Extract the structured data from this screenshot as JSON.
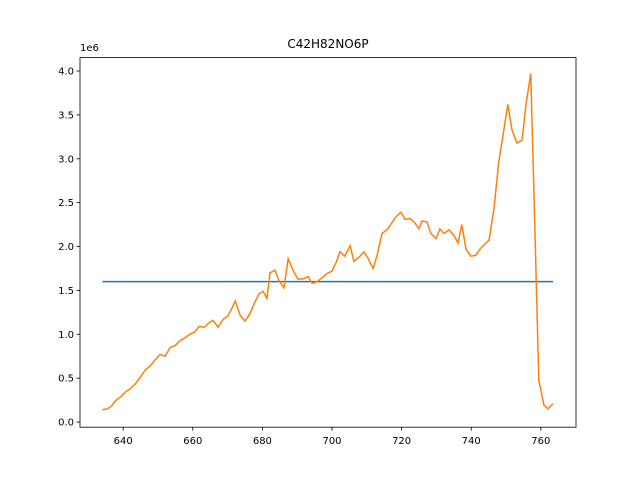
{
  "chart_data": {
    "type": "line",
    "title": "C42H82NO6P",
    "y_offset_label": "1e6",
    "xlim": [
      627.6,
      770.1
    ],
    "xticks": [
      640,
      660,
      680,
      700,
      720,
      740,
      760
    ],
    "ylim": [
      -0.059,
      4.153
    ],
    "yticks": [
      {
        "value": 0,
        "label": "0.0"
      },
      0.5,
      {
        "value": 1,
        "label": "1.0"
      },
      1.5,
      {
        "value": 2,
        "label": "2.0"
      },
      2.5,
      {
        "value": 3,
        "label": "3.0"
      },
      3.5,
      {
        "value": 4,
        "label": "4.0"
      }
    ],
    "grid": false,
    "series": [
      {
        "color": "#1f77b4",
        "x": [
          634.0,
          763.5
        ],
        "values": [
          1.6,
          1.6
        ]
      },
      {
        "color": "#ff7f0e",
        "x": [
          634.0,
          635.4,
          636.6,
          638.0,
          639.1,
          640.6,
          642.0,
          643.4,
          644.9,
          646.3,
          647.8,
          649.2,
          650.6,
          652.1,
          653.5,
          654.9,
          656.4,
          657.8,
          659.2,
          660.7,
          661.8,
          663.3,
          664.7,
          665.8,
          667.3,
          668.7,
          670.1,
          671.3,
          672.2,
          673.6,
          675.0,
          676.5,
          677.9,
          679.0,
          680.2,
          681.3,
          682.2,
          683.6,
          684.8,
          686.2,
          687.4,
          688.8,
          690.2,
          691.7,
          693.1,
          694.3,
          695.7,
          697.1,
          698.5,
          700.0,
          701.2,
          702.3,
          703.7,
          705.2,
          706.3,
          707.8,
          709.2,
          710.3,
          711.8,
          712.9,
          714.4,
          715.8,
          717.2,
          718.4,
          719.8,
          721.0,
          722.4,
          723.8,
          725.0,
          725.8,
          727.3,
          728.4,
          729.9,
          731.0,
          732.2,
          733.6,
          735.0,
          736.2,
          737.3,
          738.5,
          739.9,
          741.3,
          742.5,
          743.9,
          745.1,
          746.5,
          747.9,
          749.1,
          750.5,
          751.7,
          753.1,
          754.6,
          755.7,
          757.1,
          758.3,
          759.4,
          760.9,
          762.0,
          763.5
        ],
        "values": [
          0.14,
          0.15,
          0.18,
          0.25,
          0.28,
          0.34,
          0.38,
          0.43,
          0.51,
          0.59,
          0.64,
          0.71,
          0.77,
          0.75,
          0.85,
          0.87,
          0.93,
          0.96,
          1.0,
          1.03,
          1.09,
          1.08,
          1.13,
          1.16,
          1.08,
          1.17,
          1.21,
          1.3,
          1.38,
          1.22,
          1.15,
          1.24,
          1.37,
          1.46,
          1.49,
          1.41,
          1.7,
          1.73,
          1.61,
          1.53,
          1.86,
          1.73,
          1.63,
          1.63,
          1.66,
          1.58,
          1.6,
          1.64,
          1.69,
          1.72,
          1.82,
          1.94,
          1.89,
          2.01,
          1.83,
          1.88,
          1.94,
          1.87,
          1.75,
          1.89,
          2.15,
          2.19,
          2.27,
          2.34,
          2.39,
          2.31,
          2.32,
          2.27,
          2.2,
          2.29,
          2.28,
          2.15,
          2.09,
          2.2,
          2.15,
          2.19,
          2.13,
          2.04,
          2.25,
          1.97,
          1.89,
          1.9,
          1.97,
          2.03,
          2.07,
          2.42,
          2.96,
          3.26,
          3.62,
          3.33,
          3.18,
          3.21,
          3.61,
          3.97,
          2.19,
          0.48,
          0.19,
          0.15,
          0.21
        ]
      }
    ]
  }
}
